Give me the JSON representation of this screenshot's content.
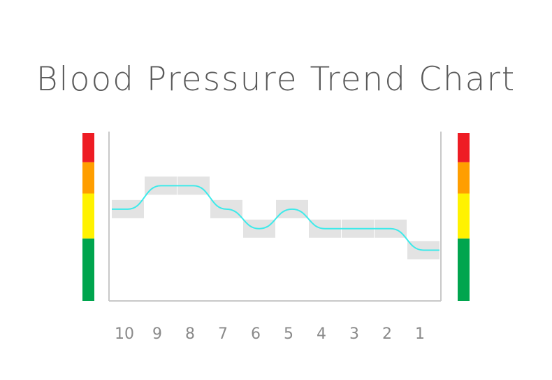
{
  "chart_data": {
    "type": "line",
    "title": "Blood Pressure Trend Chart",
    "categories": [
      "10",
      "9",
      "8",
      "7",
      "6",
      "5",
      "4",
      "3",
      "2",
      "1"
    ],
    "series": [
      {
        "values": [
          2.35,
          2.95,
          2.95,
          2.35,
          1.85,
          2.35,
          1.85,
          1.85,
          1.85,
          1.3
        ]
      }
    ],
    "ylim": [
      0,
      4.3
    ],
    "line_color": "#3deaea",
    "band_color": "#e3e3e3",
    "scale_levels": [
      {
        "from": 0,
        "to": 1.6,
        "color": "#00a54e"
      },
      {
        "from": 1.6,
        "to": 2.75,
        "color": "#fff200"
      },
      {
        "from": 2.75,
        "to": 3.55,
        "color": "#ff9e00"
      },
      {
        "from": 3.55,
        "to": 4.3,
        "color": "#ee1c24"
      }
    ],
    "grid": false,
    "legend": "none"
  }
}
